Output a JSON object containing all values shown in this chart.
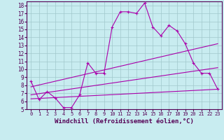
{
  "xlabel": "Windchill (Refroidissement éolien,°C)",
  "bg_color": "#c8ecf0",
  "grid_color": "#a0c8cc",
  "line_color": "#aa00aa",
  "xlim": [
    -0.5,
    23.5
  ],
  "ylim": [
    5,
    18.5
  ],
  "xticks": [
    0,
    1,
    2,
    3,
    4,
    5,
    6,
    7,
    8,
    9,
    10,
    11,
    12,
    13,
    14,
    15,
    16,
    17,
    18,
    19,
    20,
    21,
    22,
    23
  ],
  "yticks": [
    5,
    6,
    7,
    8,
    9,
    10,
    11,
    12,
    13,
    14,
    15,
    16,
    17,
    18
  ],
  "line1_x": [
    0,
    1,
    2,
    3,
    4,
    5,
    6,
    7,
    8,
    9,
    10,
    11,
    12,
    13,
    14,
    15,
    16,
    17,
    18,
    19,
    20,
    21,
    22,
    23
  ],
  "line1_y": [
    8.5,
    6.2,
    7.2,
    6.4,
    5.2,
    5.2,
    6.8,
    10.8,
    9.5,
    9.5,
    15.3,
    17.2,
    17.2,
    17.0,
    18.3,
    15.3,
    14.2,
    15.5,
    14.8,
    13.2,
    10.8,
    9.5,
    9.5,
    7.5
  ],
  "line2_x": [
    0,
    23
  ],
  "line2_y": [
    7.8,
    13.2
  ],
  "line3_x": [
    0,
    23
  ],
  "line3_y": [
    6.8,
    10.2
  ],
  "line4_x": [
    0,
    23
  ],
  "line4_y": [
    6.3,
    7.5
  ],
  "marker": "+"
}
